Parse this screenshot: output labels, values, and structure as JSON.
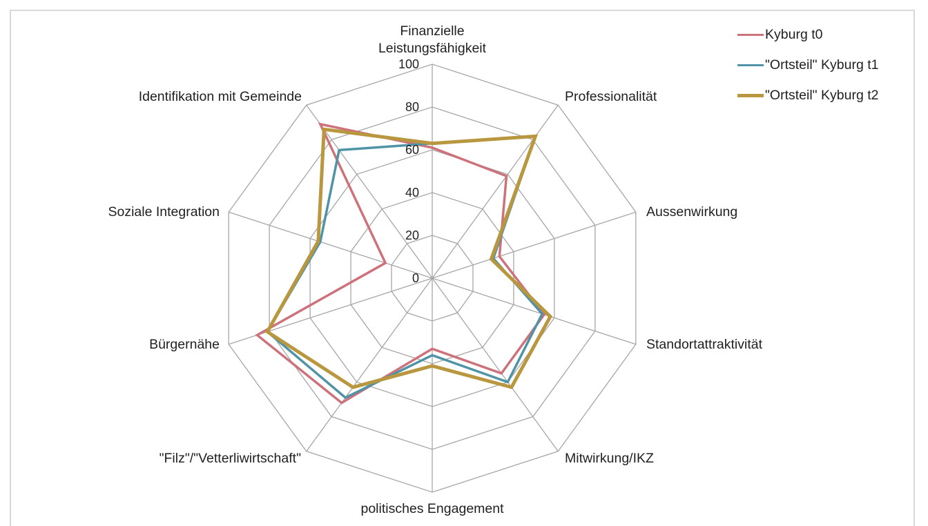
{
  "page": {
    "background": "#ffffff",
    "frame_border_color": "#d9d9d9"
  },
  "chart_data": {
    "type": "radar",
    "title": "",
    "categories": [
      "Finanzielle Leistungsfähigkeit",
      "Professionalität",
      "Aussenwirkung",
      "Standortattraktivität",
      "Mitwirkung/IKZ",
      "politisches Engagement",
      "\"Filz\"/\"Vetterliwirtschaft\"",
      "Bürgernähe",
      "Soziale Integration",
      "Identifikation mit Gemeinde"
    ],
    "series": [
      {
        "name": "Kyburg t0",
        "color": "#cd727b",
        "values": [
          61,
          59,
          33,
          55,
          55,
          33,
          72,
          86,
          23,
          89
        ]
      },
      {
        "name": "\"Ortsteil\" Kyburg t1",
        "color": "#4e93a6",
        "values": [
          63,
          82,
          30,
          54,
          60,
          36,
          69,
          81,
          55,
          74
        ]
      },
      {
        "name": "\"Ortsteil\" Kyburg t2",
        "color": "#b8973f",
        "values": [
          63,
          82,
          29,
          58,
          63,
          41,
          63,
          81,
          56,
          86
        ]
      }
    ],
    "ticks": [
      0,
      20,
      40,
      60,
      80,
      100
    ],
    "radial_range": [
      0,
      100
    ],
    "grid": true,
    "grid_color": "#a6a6a6",
    "text_color": "#1f1f1f",
    "legend_position": "top-right"
  }
}
